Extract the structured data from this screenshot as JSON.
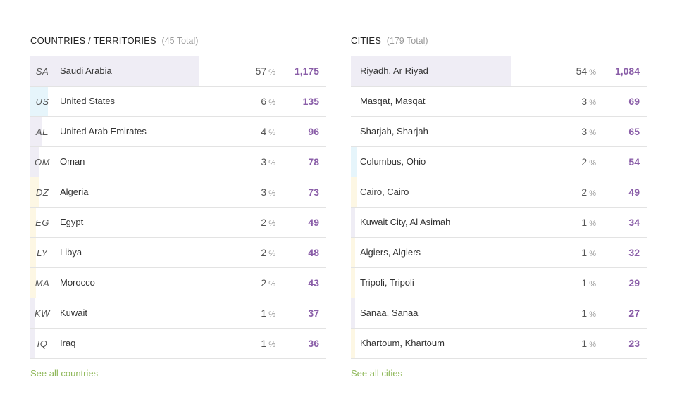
{
  "countries": {
    "title": "COUNTRIES / TERRITORIES",
    "total": "(45 Total)",
    "see_all": "See all countries",
    "rows": [
      {
        "code": "SA",
        "name": "Saudi Arabia",
        "pct": "57",
        "count": "1,175",
        "share": 0.57,
        "color": "#efedf5"
      },
      {
        "code": "US",
        "name": "United States",
        "pct": "6",
        "count": "135",
        "share": 0.06,
        "color": "#e6f5fb"
      },
      {
        "code": "AE",
        "name": "United Arab Emirates",
        "pct": "4",
        "count": "96",
        "share": 0.04,
        "color": "#efedf5"
      },
      {
        "code": "OM",
        "name": "Oman",
        "pct": "3",
        "count": "78",
        "share": 0.03,
        "color": "#efedf5"
      },
      {
        "code": "DZ",
        "name": "Algeria",
        "pct": "3",
        "count": "73",
        "share": 0.03,
        "color": "#fdf7e4"
      },
      {
        "code": "EG",
        "name": "Egypt",
        "pct": "2",
        "count": "49",
        "share": 0.02,
        "color": "#fdf7e4"
      },
      {
        "code": "LY",
        "name": "Libya",
        "pct": "2",
        "count": "48",
        "share": 0.02,
        "color": "#fdf7e4"
      },
      {
        "code": "MA",
        "name": "Morocco",
        "pct": "2",
        "count": "43",
        "share": 0.02,
        "color": "#fdf7e4"
      },
      {
        "code": "KW",
        "name": "Kuwait",
        "pct": "1",
        "count": "37",
        "share": 0.01,
        "color": "#efedf5"
      },
      {
        "code": "IQ",
        "name": "Iraq",
        "pct": "1",
        "count": "36",
        "share": 0.01,
        "color": "#efedf5"
      }
    ]
  },
  "cities": {
    "title": "CITIES",
    "total": "(179 Total)",
    "see_all": "See all cities",
    "rows": [
      {
        "name": "Riyadh, Ar Riyad",
        "pct": "54",
        "count": "1,084",
        "share": 0.54,
        "color": "#efedf5"
      },
      {
        "name": "Masqat, Masqat",
        "pct": "3",
        "count": "69",
        "share": 0.03,
        "color": "#ffffff"
      },
      {
        "name": "Sharjah, Sharjah",
        "pct": "3",
        "count": "65",
        "share": 0.03,
        "color": "#ffffff"
      },
      {
        "name": "Columbus, Ohio",
        "pct": "2",
        "count": "54",
        "share": 0.02,
        "color": "#e6f5fb"
      },
      {
        "name": "Cairo, Cairo",
        "pct": "2",
        "count": "49",
        "share": 0.02,
        "color": "#fdf7e4"
      },
      {
        "name": "Kuwait City, Al Asimah",
        "pct": "1",
        "count": "34",
        "share": 0.01,
        "color": "#efedf5"
      },
      {
        "name": "Algiers, Algiers",
        "pct": "1",
        "count": "32",
        "share": 0.01,
        "color": "#fdf7e4"
      },
      {
        "name": "Tripoli, Tripoli",
        "pct": "1",
        "count": "29",
        "share": 0.01,
        "color": "#fdf7e4"
      },
      {
        "name": "Sanaa, Sanaa",
        "pct": "1",
        "count": "27",
        "share": 0.01,
        "color": "#efedf5"
      },
      {
        "name": "Khartoum, Khartoum",
        "pct": "1",
        "count": "23",
        "share": 0.01,
        "color": "#fdf7e4"
      }
    ]
  },
  "percent_sign": "%"
}
